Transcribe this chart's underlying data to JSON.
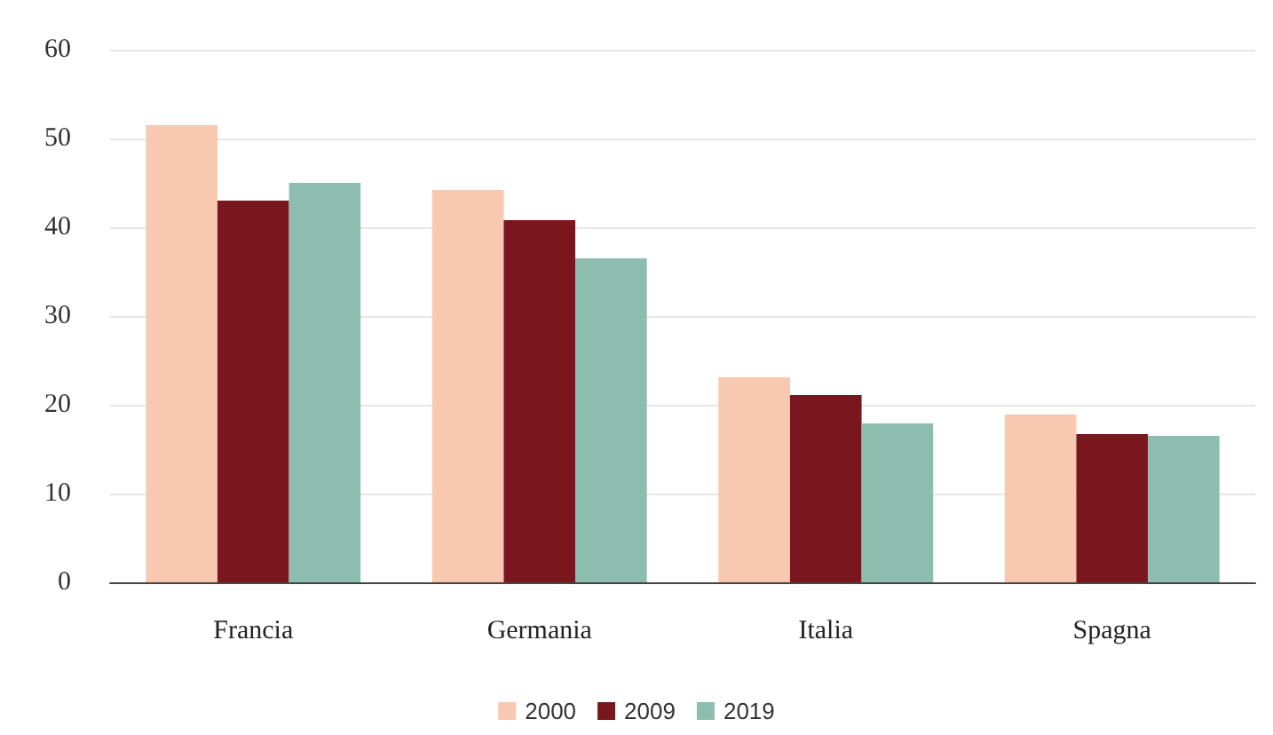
{
  "chart_data": {
    "type": "bar",
    "categories": [
      "Francia",
      "Germania",
      "Italia",
      "Spagna"
    ],
    "series": [
      {
        "name": "2000",
        "color": "#f8c8b0",
        "values": [
          51.5,
          44.2,
          23.1,
          18.9
        ]
      },
      {
        "name": "2009",
        "color": "#7a161d",
        "values": [
          43,
          40.8,
          21.1,
          16.7
        ]
      },
      {
        "name": "2019",
        "color": "#8dbdae",
        "values": [
          45,
          36.5,
          17.9,
          16.5
        ]
      }
    ],
    "ylim": [
      0,
      60
    ],
    "yticks": [
      0,
      10,
      20,
      30,
      40,
      50,
      60
    ],
    "grid": "y",
    "legend": "bottom"
  }
}
